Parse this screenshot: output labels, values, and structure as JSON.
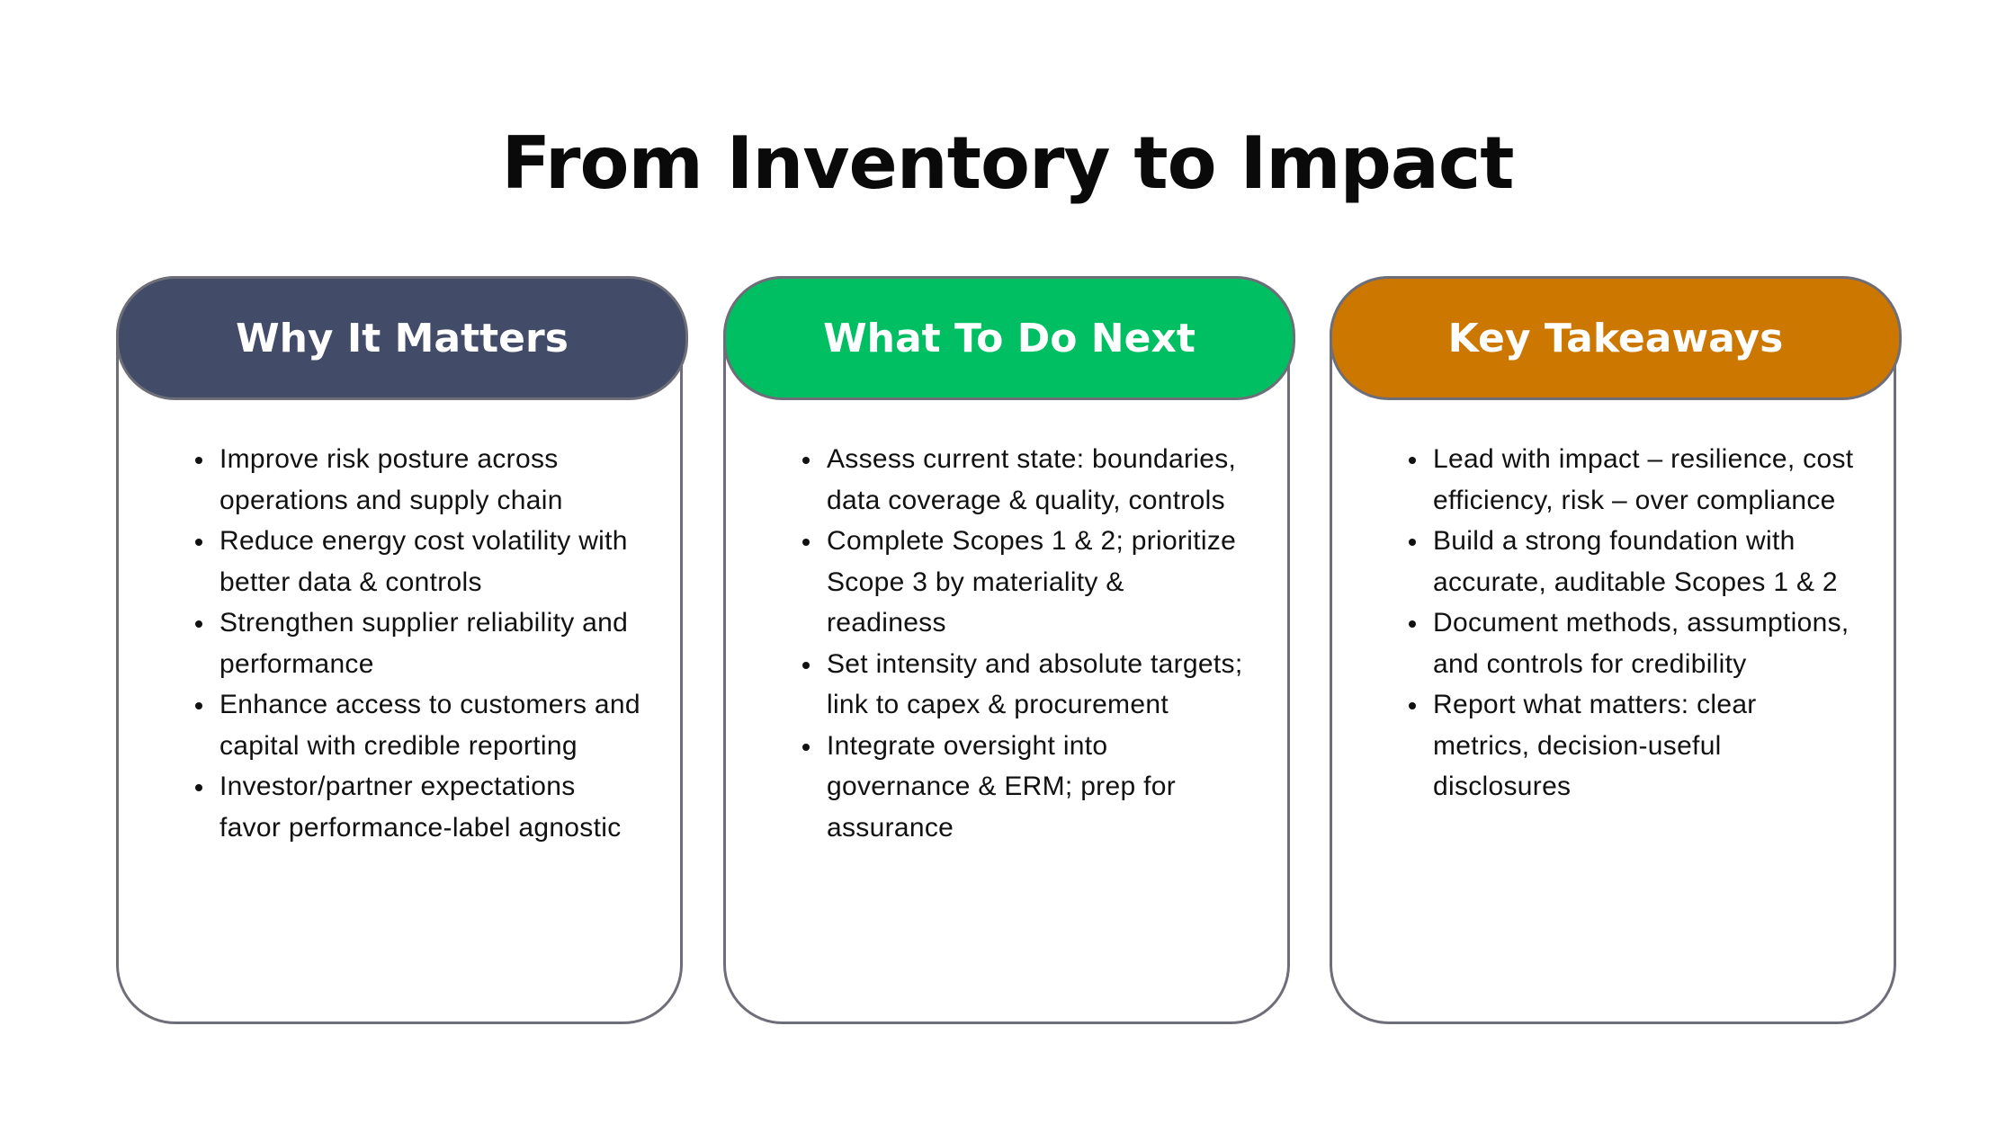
{
  "title": "From Inventory to Impact",
  "cards": [
    {
      "heading": "Why It Matters",
      "color": "#424B67",
      "items": [
        "Improve risk posture across operations and supply chain",
        "Reduce energy cost volatility with better data & controls",
        "Strengthen supplier reliability and performance",
        "Enhance access to customers and capital with credible reporting",
        "Investor/partner expectations favor performance-label agnostic"
      ]
    },
    {
      "heading": "What To Do Next",
      "color": "#00BF63",
      "items": [
        "Assess current state: boundaries, data coverage & quality, controls",
        "Complete Scopes 1 & 2; prioritize Scope 3 by materiality & readiness",
        "Set intensity and absolute targets; link to capex & procurement",
        "Integrate oversight into governance & ERM; prep for assurance"
      ]
    },
    {
      "heading": "Key Takeaways",
      "color": "#CC7700",
      "items": [
        "Lead with impact – resilience, cost efficiency, risk – over compliance",
        "Build a strong foundation with accurate, auditable Scopes 1 & 2",
        "Document methods, assumptions, and controls for credibility",
        "Report what matters: clear metrics, decision-useful disclosures"
      ]
    }
  ]
}
